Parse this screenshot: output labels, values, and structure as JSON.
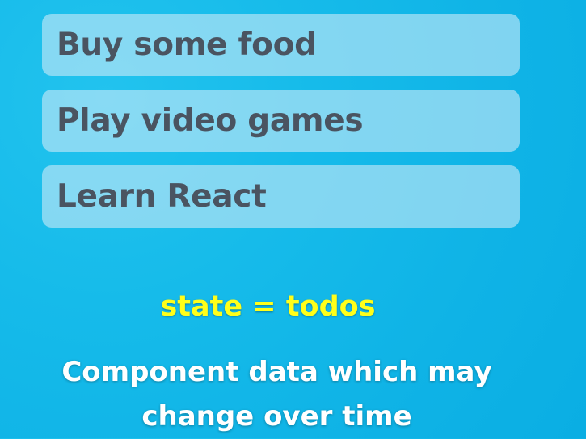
{
  "todos": [
    {
      "label": "Buy some food"
    },
    {
      "label": "Play video games"
    },
    {
      "label": "Learn React"
    }
  ],
  "state_label": "state = todos",
  "caption": {
    "line1": "Component data which may",
    "line2": "change over time"
  },
  "colors": {
    "background": "#12b6e8",
    "todo_bg": "#a9dff4",
    "todo_text": "#4a5461",
    "state_text": "#ffff1a",
    "caption_text": "#ffffff"
  }
}
